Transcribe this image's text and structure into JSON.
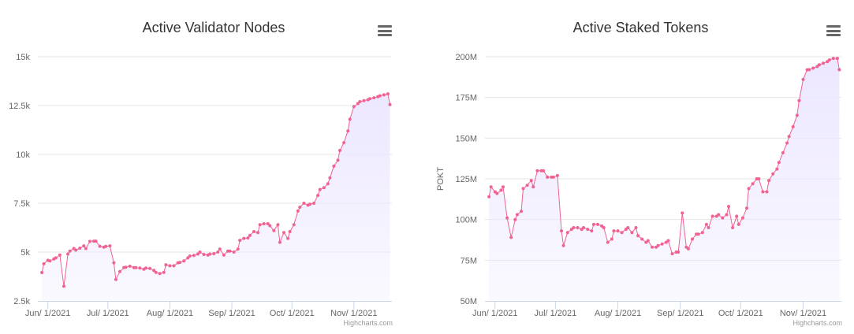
{
  "chart_data": [
    {
      "type": "area",
      "title": "Active Validator Nodes",
      "xlabel": "",
      "ylabel": "",
      "ylim": [
        2500,
        15000
      ],
      "y_ticks": [
        "2.5k",
        "5k",
        "7.5k",
        "10k",
        "12.5k",
        "15k"
      ],
      "x_ticks": [
        "Jun/ 1/2021",
        "Jul/ 1/2021",
        "Aug/ 1/2021",
        "Sep/ 1/2021",
        "Oct/ 1/2021",
        "Nov/ 1/2021"
      ],
      "line_color": "#f06292",
      "fill_color": "#ece7ff",
      "credit": "Highcharts.com",
      "series": [
        {
          "x": [
            "2021-05-29",
            "2021-05-30",
            "2021-06-01",
            "2021-06-02",
            "2021-06-04",
            "2021-06-05",
            "2021-06-07",
            "2021-06-09",
            "2021-06-11",
            "2021-06-12",
            "2021-06-14",
            "2021-06-15",
            "2021-06-17",
            "2021-06-19",
            "2021-06-20",
            "2021-06-22",
            "2021-06-24",
            "2021-06-25",
            "2021-06-27",
            "2021-06-29",
            "2021-06-30",
            "2021-07-02",
            "2021-07-04",
            "2021-07-05",
            "2021-07-07",
            "2021-07-09",
            "2021-07-10",
            "2021-07-12",
            "2021-07-14",
            "2021-07-15",
            "2021-07-17",
            "2021-07-19",
            "2021-07-20",
            "2021-07-22",
            "2021-07-24",
            "2021-07-25",
            "2021-07-27",
            "2021-07-29",
            "2021-07-30",
            "2021-08-01",
            "2021-08-03",
            "2021-08-05",
            "2021-08-06",
            "2021-08-08",
            "2021-08-10",
            "2021-08-11",
            "2021-08-13",
            "2021-08-15",
            "2021-08-16",
            "2021-08-18",
            "2021-08-20",
            "2021-08-21",
            "2021-08-23",
            "2021-08-25",
            "2021-08-26",
            "2021-08-28",
            "2021-08-30",
            "2021-08-31",
            "2021-09-02",
            "2021-09-04",
            "2021-09-05",
            "2021-09-07",
            "2021-09-09",
            "2021-09-10",
            "2021-09-12",
            "2021-09-14",
            "2021-09-15",
            "2021-09-17",
            "2021-09-19",
            "2021-09-20",
            "2021-09-22",
            "2021-09-24",
            "2021-09-25",
            "2021-09-27",
            "2021-09-29",
            "2021-09-30",
            "2021-10-02",
            "2021-10-04",
            "2021-10-05",
            "2021-10-07",
            "2021-10-09",
            "2021-10-10",
            "2021-10-12",
            "2021-10-14",
            "2021-10-15",
            "2021-10-17",
            "2021-10-19",
            "2021-10-20",
            "2021-10-22",
            "2021-10-24",
            "2021-10-25",
            "2021-10-27",
            "2021-10-29",
            "2021-10-30",
            "2021-11-01",
            "2021-11-03",
            "2021-11-04",
            "2021-11-06",
            "2021-11-08",
            "2021-11-09",
            "2021-11-11",
            "2021-11-13",
            "2021-11-14",
            "2021-11-16",
            "2021-11-18",
            "2021-11-19"
          ],
          "values": [
            3950,
            4400,
            4580,
            4550,
            4650,
            4700,
            4850,
            3250,
            4900,
            5050,
            5180,
            5100,
            5200,
            5320,
            5180,
            5550,
            5560,
            5560,
            5300,
            5250,
            5290,
            5320,
            4450,
            3600,
            4000,
            4200,
            4220,
            4280,
            4200,
            4200,
            4180,
            4120,
            4180,
            4160,
            4060,
            3960,
            3900,
            3960,
            4350,
            4300,
            4300,
            4450,
            4470,
            4550,
            4700,
            4800,
            4830,
            4900,
            5000,
            4880,
            4850,
            4900,
            4920,
            5000,
            5150,
            4850,
            5050,
            5050,
            5000,
            5150,
            5600,
            5700,
            5720,
            5850,
            6050,
            6000,
            6400,
            6450,
            6450,
            6350,
            6100,
            6400,
            5500,
            6000,
            5700,
            6050,
            6400,
            7100,
            7300,
            7500,
            7400,
            7450,
            7500,
            7900,
            8200,
            8300,
            8500,
            8800,
            9400,
            9700,
            10200,
            10600,
            11200,
            11800,
            12450,
            12600,
            12700,
            12750,
            12800,
            12850,
            12900,
            12950,
            13000,
            13050,
            13100,
            12550
          ]
        }
      ]
    },
    {
      "type": "area",
      "title": "Active Staked Tokens",
      "xlabel": "",
      "ylabel": "POKT",
      "ylim": [
        50000000,
        200000000
      ],
      "y_ticks": [
        "50M",
        "75M",
        "100M",
        "125M",
        "150M",
        "175M",
        "200M"
      ],
      "x_ticks": [
        "Jun/ 1/2021",
        "Jul/ 1/2021",
        "Aug/ 1/2021",
        "Sep/ 1/2021",
        "Oct/ 1/2021",
        "Nov/ 1/2021"
      ],
      "line_color": "#f06292",
      "fill_color": "#ece7ff",
      "credit": "Highcharts.com",
      "series": [
        {
          "x": [
            "2021-05-29",
            "2021-05-30",
            "2021-06-01",
            "2021-06-02",
            "2021-06-04",
            "2021-06-05",
            "2021-06-07",
            "2021-06-09",
            "2021-06-11",
            "2021-06-12",
            "2021-06-14",
            "2021-06-15",
            "2021-06-17",
            "2021-06-19",
            "2021-06-20",
            "2021-06-22",
            "2021-06-24",
            "2021-06-25",
            "2021-06-27",
            "2021-06-29",
            "2021-06-30",
            "2021-07-02",
            "2021-07-04",
            "2021-07-05",
            "2021-07-07",
            "2021-07-09",
            "2021-07-10",
            "2021-07-12",
            "2021-07-14",
            "2021-07-15",
            "2021-07-17",
            "2021-07-19",
            "2021-07-20",
            "2021-07-22",
            "2021-07-24",
            "2021-07-25",
            "2021-07-27",
            "2021-07-29",
            "2021-07-30",
            "2021-08-01",
            "2021-08-03",
            "2021-08-05",
            "2021-08-06",
            "2021-08-08",
            "2021-08-10",
            "2021-08-11",
            "2021-08-13",
            "2021-08-15",
            "2021-08-16",
            "2021-08-18",
            "2021-08-20",
            "2021-08-21",
            "2021-08-23",
            "2021-08-25",
            "2021-08-26",
            "2021-08-28",
            "2021-08-30",
            "2021-08-31",
            "2021-09-02",
            "2021-09-04",
            "2021-09-05",
            "2021-09-07",
            "2021-09-09",
            "2021-09-10",
            "2021-09-12",
            "2021-09-14",
            "2021-09-15",
            "2021-09-17",
            "2021-09-19",
            "2021-09-20",
            "2021-09-22",
            "2021-09-24",
            "2021-09-25",
            "2021-09-27",
            "2021-09-29",
            "2021-09-30",
            "2021-10-02",
            "2021-10-04",
            "2021-10-05",
            "2021-10-07",
            "2021-10-09",
            "2021-10-10",
            "2021-10-12",
            "2021-10-14",
            "2021-10-15",
            "2021-10-17",
            "2021-10-19",
            "2021-10-20",
            "2021-10-22",
            "2021-10-24",
            "2021-10-25",
            "2021-10-27",
            "2021-10-29",
            "2021-10-30",
            "2021-11-01",
            "2021-11-03",
            "2021-11-04",
            "2021-11-06",
            "2021-11-08",
            "2021-11-09",
            "2021-11-11",
            "2021-11-13",
            "2021-11-14",
            "2021-11-16",
            "2021-11-18",
            "2021-11-19"
          ],
          "values": [
            114000000,
            120000000,
            117000000,
            116000000,
            118000000,
            120000000,
            101000000,
            89000000,
            100000000,
            103000000,
            105000000,
            119000000,
            121000000,
            124000000,
            120000000,
            130000000,
            130000000,
            130000000,
            126000000,
            126000000,
            126000000,
            127000000,
            93000000,
            84000000,
            92000000,
            94000000,
            95000000,
            95000000,
            94000000,
            95000000,
            94000000,
            93000000,
            97000000,
            97000000,
            96000000,
            95000000,
            86000000,
            88000000,
            93000000,
            93000000,
            92000000,
            94000000,
            95000000,
            92000000,
            95000000,
            90000000,
            88000000,
            86000000,
            87000000,
            83000000,
            83000000,
            84000000,
            85000000,
            86000000,
            87000000,
            79000000,
            80000000,
            80000000,
            104000000,
            83000000,
            82000000,
            88000000,
            91000000,
            91000000,
            92000000,
            97000000,
            95000000,
            102000000,
            102000000,
            103000000,
            101000000,
            103000000,
            108000000,
            95000000,
            102000000,
            97000000,
            101000000,
            107000000,
            119000000,
            122000000,
            125000000,
            125000000,
            117000000,
            117000000,
            124000000,
            128000000,
            131000000,
            135000000,
            141000000,
            147000000,
            151000000,
            157000000,
            164000000,
            173000000,
            186000000,
            192000000,
            192000000,
            193000000,
            194000000,
            195000000,
            196000000,
            197000000,
            198000000,
            199000000,
            199000000,
            192000000
          ]
        }
      ]
    }
  ]
}
